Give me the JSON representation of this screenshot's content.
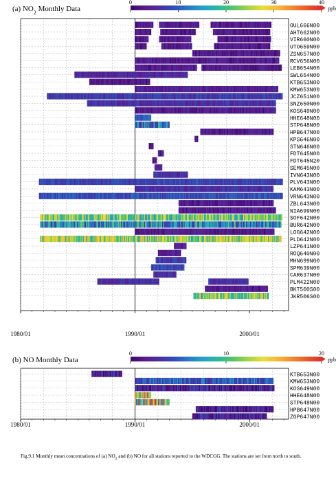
{
  "colors": {
    "accent_dark": "#4a0b68",
    "gridline": "#b0b0b0",
    "frame": "#000000"
  },
  "color_scale_stops": [
    "#3b0a6a",
    "#5b1a8c",
    "#4a2fa0",
    "#2f4fb8",
    "#2a7cc8",
    "#25a3c5",
    "#2cb89e",
    "#58c46a",
    "#a6d24a",
    "#e6df3a",
    "#f6b73a",
    "#f08a2e",
    "#e85a2a",
    "#d8302a"
  ],
  "caption": {
    "text": "Fig.9.1 Monthly mean concentrations of (a) NO2 and (b) NO for all stations reported to the WDCGG. The stations are set from north to south."
  },
  "chart_data": [
    {
      "type": "heatmap",
      "title": "(a) NO2 Monthly Data",
      "unit": "ppb",
      "scale_range": [
        0,
        40
      ],
      "scale_ticks": [
        "0",
        "10",
        "20",
        "30",
        "40"
      ],
      "scale_unit": "ppb",
      "xlim": [
        "1980/01",
        "2003/06"
      ],
      "x_ticks": [
        "1980/01",
        "1990/01",
        "2000/01"
      ],
      "grid": true,
      "stations": [
        {
          "name": "OUL666N00",
          "segments": [
            [
              1990.0,
              1991.6,
              3
            ],
            [
              1992.1,
              1995.6,
              3
            ],
            [
              1996.6,
              2001.9,
              3
            ]
          ]
        },
        {
          "name": "AHT662N00",
          "segments": [
            [
              1990.0,
              1991.4,
              3
            ],
            [
              1992.2,
              1995.3,
              3
            ],
            [
              1996.8,
              2001.8,
              3
            ]
          ]
        },
        {
          "name": "VIR660N00",
          "segments": [
            [
              1990.0,
              1991.2,
              3
            ],
            [
              1992.1,
              1994.9,
              3
            ],
            [
              1997.2,
              2001.9,
              3
            ]
          ]
        },
        {
          "name": "UTO659N00",
          "segments": [
            [
              1990.0,
              1991.0,
              3
            ],
            [
              1992.3,
              1995.0,
              3
            ],
            [
              1996.9,
              2001.8,
              3
            ]
          ]
        },
        {
          "name": "ZSN657N00",
          "segments": [
            [
              1995.0,
              2002.7,
              3
            ]
          ]
        },
        {
          "name": "RCV656N00",
          "segments": [
            [
              1990.0,
              2002.6,
              3
            ]
          ]
        },
        {
          "name": "LEB654N00",
          "segments": [
            [
              1990.0,
              1995.4,
              3
            ],
            [
              1995.8,
              2002.8,
              3
            ]
          ]
        },
        {
          "name": "SWL654N00",
          "segments": [
            [
              1984.7,
              1994.6,
              5
            ]
          ]
        },
        {
          "name": "KTB653N00",
          "segments": [
            [
              1986.0,
              1991.3,
              3
            ]
          ]
        },
        {
          "name": "KMW653N00",
          "segments": [
            [
              1990.0,
              2002.5,
              4
            ]
          ]
        },
        {
          "name": "JCZ651N00",
          "segments": [
            [
              1982.3,
              2002.9,
              7
            ]
          ]
        },
        {
          "name": "SNZ650N00",
          "segments": [
            [
              1985.8,
              2002.3,
              6
            ]
          ]
        },
        {
          "name": "KOS649N00",
          "segments": [
            [
              1990.0,
              2002.3,
              3
            ]
          ]
        },
        {
          "name": "HHE648N00",
          "segments": [
            [
              1990.0,
              1991.4,
              10
            ]
          ]
        },
        {
          "name": "STP648N00",
          "segments": [
            [
              1990.0,
              1993.0,
              12
            ]
          ]
        },
        {
          "name": "HPB647N00",
          "segments": [
            [
              1995.7,
              2002.1,
              3
            ]
          ]
        },
        {
          "name": "KPS646N00",
          "segments": [
            [
              1995.2,
              1995.5,
              3
            ]
          ]
        },
        {
          "name": "STN646N00",
          "segments": [
            [
              1991.2,
              1991.6,
              3
            ]
          ]
        },
        {
          "name": "FDT645N00",
          "segments": [
            [
              1992.0,
              1992.5,
              3
            ]
          ]
        },
        {
          "name": "FDT645N20",
          "segments": [
            [
              1991.5,
              1991.9,
              3
            ]
          ]
        },
        {
          "name": "SEM645N00",
          "segments": [
            [
              1991.7,
              1992.4,
              4
            ]
          ]
        },
        {
          "name": "IVN643N00",
          "segments": [
            [
              1991.6,
              1994.6,
              6
            ]
          ]
        },
        {
          "name": "PLV643N00",
          "segments": [
            [
              1981.6,
              2002.9,
              8
            ]
          ]
        },
        {
          "name": "KAM643N00",
          "segments": [
            [
              1990.0,
              2002.1,
              6
            ]
          ]
        },
        {
          "name": "VRN643N00",
          "segments": [
            [
              1981.6,
              2002.9,
              9
            ]
          ]
        },
        {
          "name": "ZBL643N00",
          "segments": [
            [
              1993.8,
              2002.1,
              3
            ]
          ]
        },
        {
          "name": "NIA699N00",
          "segments": [
            [
              1993.8,
              2002.3,
              3
            ]
          ]
        },
        {
          "name": "SOF642N00",
          "segments": [
            [
              1981.7,
              2002.9,
              22
            ]
          ]
        },
        {
          "name": "BUR642N00",
          "segments": [
            [
              1981.7,
              2002.8,
              14
            ]
          ]
        },
        {
          "name": "LOG642N00",
          "segments": [
            [
              1990.0,
              2002.2,
              3
            ]
          ]
        },
        {
          "name": "PLD642N00",
          "segments": [
            [
              1981.7,
              2002.8,
              24
            ]
          ]
        },
        {
          "name": "LZP641N00",
          "segments": [
            [
              1993.4,
              1994.5,
              4
            ]
          ]
        },
        {
          "name": "ROQ640N00",
          "segments": [
            [
              1992.0,
              1993.0,
              3
            ],
            [
              1993.0,
              1994.0,
              4
            ]
          ]
        },
        {
          "name": "MHN699N00",
          "segments": [
            [
              1991.8,
              1994.5,
              7
            ]
          ]
        },
        {
          "name": "SPM639N00",
          "segments": [
            [
              1991.4,
              1994.3,
              8
            ]
          ]
        },
        {
          "name": "CAR637N00",
          "segments": [
            [
              1991.6,
              1993.6,
              6
            ]
          ]
        },
        {
          "name": "PLM422N00",
          "segments": [
            [
              1986.7,
              1992.1,
              6
            ],
            [
              1996.4,
              1999.9,
              6
            ]
          ]
        },
        {
          "name": "BKT500S00",
          "segments": [
            [
              1996.1,
              2001.6,
              3
            ]
          ]
        },
        {
          "name": "JKR506S00",
          "segments": [
            [
              1995.1,
              2001.7,
              23
            ]
          ]
        }
      ]
    },
    {
      "type": "heatmap",
      "title": "(b) NO Monthly Data",
      "unit": "ppb",
      "scale_range": [
        0,
        20
      ],
      "scale_ticks": [
        "0",
        "10",
        "20"
      ],
      "scale_unit": "ppb",
      "xlim": [
        "1980/01",
        "2003/06"
      ],
      "x_ticks": [
        "1980/01",
        "1990/01",
        "2000/01"
      ],
      "grid": true,
      "stations": [
        {
          "name": "KTB653N00",
          "segments": [
            [
              1986.2,
              1988.9,
              2
            ]
          ]
        },
        {
          "name": "KMW653N00",
          "segments": [
            [
              1990.0,
              2002.1,
              5
            ]
          ]
        },
        {
          "name": "KOS649N00",
          "segments": [
            [
              1990.0,
              2002.2,
              2
            ]
          ]
        },
        {
          "name": "HHE648N00",
          "segments": [
            [
              1990.0,
              1991.4,
              12
            ]
          ]
        },
        {
          "name": "STP648N00",
          "segments": [
            [
              1990.0,
              1993.0,
              13
            ]
          ]
        },
        {
          "name": "HPB647N00",
          "segments": [
            [
              1995.3,
              2002.1,
              2
            ]
          ]
        },
        {
          "name": "ZGP647N00",
          "segments": [
            [
              1995.0,
              2001.5,
              2
            ]
          ]
        }
      ]
    }
  ]
}
